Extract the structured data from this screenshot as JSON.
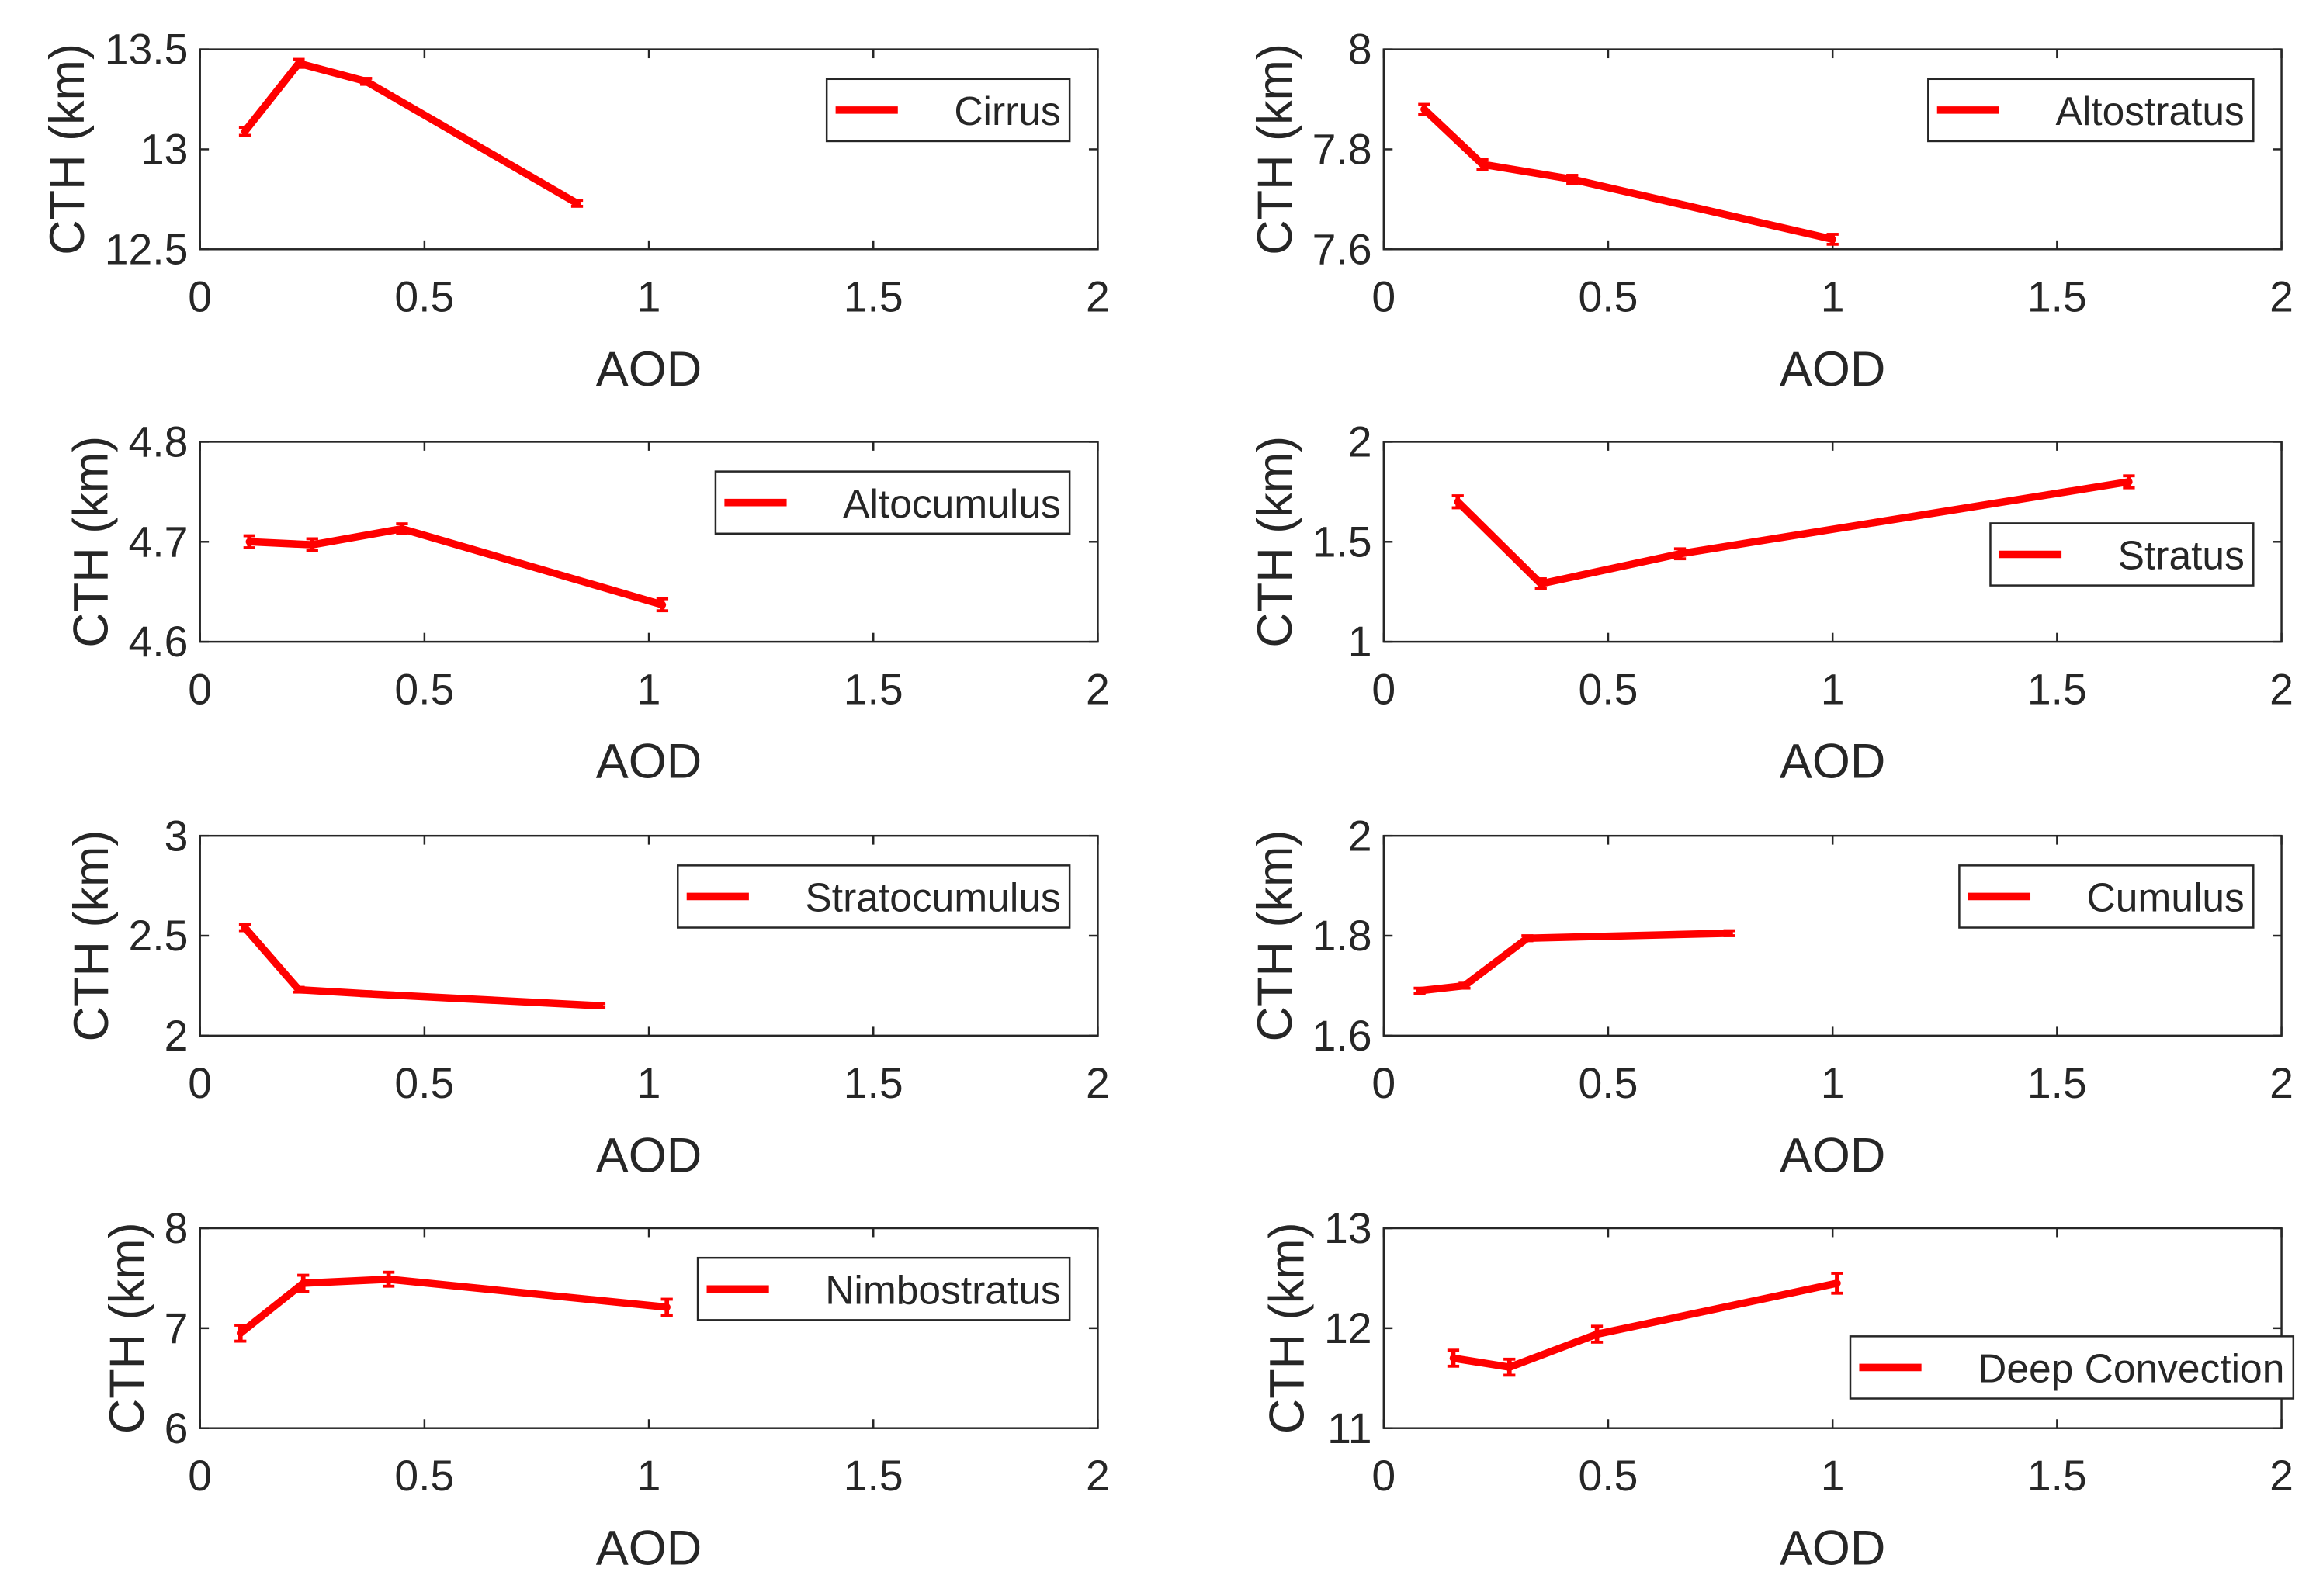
{
  "chart_data": [
    {
      "type": "line",
      "legend": "Cirrus",
      "legend_position": "top-right",
      "xlabel": "AOD",
      "ylabel": "CTH (km)",
      "xlim": [
        0,
        2
      ],
      "ylim": [
        12.5,
        13.5
      ],
      "xticks": [
        "0",
        "0.5",
        "1",
        "1.5",
        "2"
      ],
      "yticks": [
        "12.5",
        "13",
        "13.5"
      ],
      "x": [
        0.1,
        0.22,
        0.37,
        0.84
      ],
      "y": [
        13.09,
        13.43,
        13.34,
        12.73
      ],
      "err": [
        0.02,
        0.02,
        0.015,
        0.015
      ]
    },
    {
      "type": "line",
      "legend": "Altostratus",
      "legend_position": "top-right",
      "xlabel": "AOD",
      "ylabel": "CTH (km)",
      "xlim": [
        0,
        2
      ],
      "ylim": [
        7.6,
        8
      ],
      "xticks": [
        "0",
        "0.5",
        "1",
        "1.5",
        "2"
      ],
      "yticks": [
        "7.6",
        "7.8",
        "8"
      ],
      "x": [
        0.09,
        0.22,
        0.42,
        1.0
      ],
      "y": [
        7.88,
        7.77,
        7.74,
        7.62
      ],
      "err": [
        0.01,
        0.01,
        0.008,
        0.01
      ]
    },
    {
      "type": "line",
      "legend": "Altocumulus",
      "legend_position": "top-right",
      "xlabel": "AOD",
      "ylabel": "CTH (km)",
      "xlim": [
        0,
        2
      ],
      "ylim": [
        4.6,
        4.8
      ],
      "xticks": [
        "0",
        "0.5",
        "1",
        "1.5",
        "2"
      ],
      "yticks": [
        "4.6",
        "4.7",
        "4.8"
      ],
      "x": [
        0.11,
        0.25,
        0.45,
        1.03
      ],
      "y": [
        4.7,
        4.697,
        4.713,
        4.637
      ],
      "err": [
        0.006,
        0.006,
        0.005,
        0.006
      ]
    },
    {
      "type": "line",
      "legend": "Stratus",
      "legend_position": "right",
      "xlabel": "AOD",
      "ylabel": "CTH (km)",
      "xlim": [
        0,
        2
      ],
      "ylim": [
        1,
        2
      ],
      "xticks": [
        "0",
        "0.5",
        "1",
        "1.5",
        "2"
      ],
      "yticks": [
        "1",
        "1.5",
        "2"
      ],
      "x": [
        0.165,
        0.35,
        0.66,
        1.66
      ],
      "y": [
        1.7,
        1.29,
        1.44,
        1.8
      ],
      "err": [
        0.03,
        0.025,
        0.025,
        0.03
      ]
    },
    {
      "type": "line",
      "legend": "Stratocumulus",
      "legend_position": "top-right",
      "xlabel": "AOD",
      "ylabel": "CTH (km)",
      "xlim": [
        0,
        2
      ],
      "ylim": [
        2,
        3
      ],
      "xticks": [
        "0",
        "0.5",
        "1",
        "1.5",
        "2"
      ],
      "yticks": [
        "2",
        "2.5",
        "3"
      ],
      "x": [
        0.1,
        0.22,
        0.37,
        0.89
      ],
      "y": [
        2.54,
        2.23,
        2.21,
        2.15
      ],
      "err": [
        0.015,
        0.012,
        0.01,
        0.01
      ]
    },
    {
      "type": "line",
      "legend": "Cumulus",
      "legend_position": "top-right",
      "xlabel": "AOD",
      "ylabel": "CTH (km)",
      "xlim": [
        0,
        2
      ],
      "ylim": [
        1.6,
        2
      ],
      "xticks": [
        "0",
        "0.5",
        "1",
        "1.5",
        "2"
      ],
      "yticks": [
        "1.6",
        "1.8",
        "2"
      ],
      "x": [
        0.08,
        0.18,
        0.32,
        0.77
      ],
      "y": [
        1.69,
        1.7,
        1.795,
        1.805
      ],
      "err": [
        0.005,
        0.005,
        0.005,
        0.005
      ]
    },
    {
      "type": "line",
      "legend": "Nimbostratus",
      "legend_position": "top-right",
      "xlabel": "AOD",
      "ylabel": "CTH (km)",
      "xlim": [
        0,
        2
      ],
      "ylim": [
        6,
        8
      ],
      "xticks": [
        "0",
        "0.5",
        "1",
        "1.5",
        "2"
      ],
      "yticks": [
        "6",
        "7",
        "8"
      ],
      "x": [
        0.09,
        0.23,
        0.42,
        1.04
      ],
      "y": [
        6.95,
        7.45,
        7.49,
        7.21
      ],
      "err": [
        0.08,
        0.08,
        0.07,
        0.08
      ]
    },
    {
      "type": "line",
      "legend": "Deep Convection",
      "legend_position": "bottom-right",
      "xlabel": "AOD",
      "ylabel": "CTH (km)",
      "xlim": [
        0,
        2
      ],
      "ylim": [
        11,
        13
      ],
      "xticks": [
        "0",
        "0.5",
        "1",
        "1.5",
        "2"
      ],
      "yticks": [
        "11",
        "12",
        "13"
      ],
      "x": [
        0.155,
        0.28,
        0.475,
        1.01
      ],
      "y": [
        11.7,
        11.61,
        11.94,
        12.45
      ],
      "err": [
        0.08,
        0.08,
        0.08,
        0.1
      ]
    }
  ],
  "colors": {
    "line": "#ff0000",
    "axis": "#262626",
    "text": "#262626"
  }
}
